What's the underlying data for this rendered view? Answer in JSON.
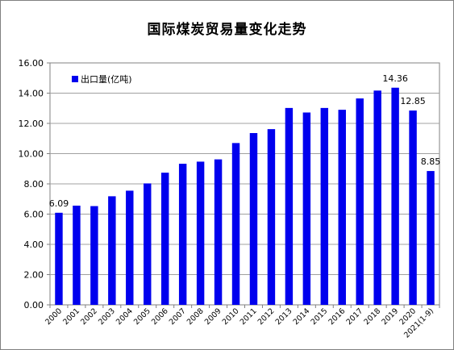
{
  "chart_data": {
    "type": "bar",
    "title": "国际煤炭贸易量变化走势",
    "categories": [
      "2000",
      "2001",
      "2002",
      "2003",
      "2004",
      "2005",
      "2006",
      "2007",
      "2008",
      "2009",
      "2010",
      "2011",
      "2012",
      "2013",
      "2014",
      "2015",
      "2016",
      "2017",
      "2018",
      "2019",
      "2020",
      "2021(1-9)"
    ],
    "series": [
      {
        "name": "出口量(亿吨)",
        "color": "#0000EE",
        "values": [
          6.09,
          6.56,
          6.53,
          7.18,
          7.55,
          8.03,
          8.74,
          9.33,
          9.47,
          9.62,
          10.7,
          11.36,
          11.62,
          13.02,
          12.72,
          13.02,
          12.9,
          13.65,
          14.17,
          14.36,
          12.85,
          8.85
        ]
      }
    ],
    "data_labels": [
      {
        "index": 0,
        "text": "6.09"
      },
      {
        "index": 19,
        "text": "14.36"
      },
      {
        "index": 20,
        "text": "12.85"
      },
      {
        "index": 21,
        "text": "8.85"
      }
    ],
    "ylim": [
      0,
      16
    ],
    "yticks": [
      "0.00",
      "2.00",
      "4.00",
      "6.00",
      "8.00",
      "10.00",
      "12.00",
      "14.00",
      "16.00"
    ],
    "grid": true,
    "legend_position": "top-left"
  }
}
